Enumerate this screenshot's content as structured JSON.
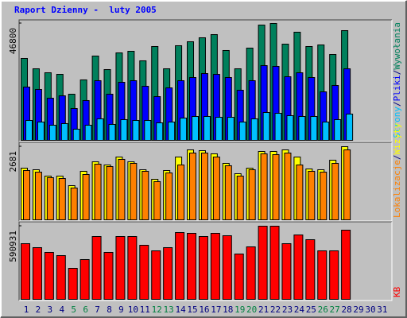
{
  "chart_data": {
    "type": "bar",
    "title": "Raport Dzienny -  luty 2005",
    "categories": [
      "1",
      "2",
      "3",
      "4",
      "5",
      "6",
      "7",
      "8",
      "9",
      "10",
      "11",
      "12",
      "13",
      "14",
      "15",
      "16",
      "17",
      "18",
      "19",
      "20",
      "21",
      "22",
      "23",
      "24",
      "25",
      "26",
      "27",
      "28",
      "29",
      "30",
      "31"
    ],
    "category_colors": [
      "#000080",
      "#000080",
      "#000080",
      "#000080",
      "#008040",
      "#008040",
      "#000080",
      "#000080",
      "#000080",
      "#000080",
      "#000080",
      "#008040",
      "#008040",
      "#000080",
      "#000080",
      "#000080",
      "#000080",
      "#000080",
      "#008040",
      "#008040",
      "#000080",
      "#000080",
      "#000080",
      "#000080",
      "#000080",
      "#008040",
      "#008040",
      "#000080",
      "#000080",
      "#000080",
      "#000080"
    ],
    "legend_separator": "/",
    "panels": [
      {
        "ylim": [
          0,
          46800
        ],
        "yticks": [
          46800
        ],
        "series": [
          {
            "name": "Wywołania",
            "color": "#00805c",
            "values": [
              32790,
              28650,
              27060,
              26420,
              18470,
              24200,
              33750,
              28330,
              35020,
              35660,
              31840,
              37570,
              28650,
              37890,
              39480,
              41070,
              42340,
              35980,
              28650,
              36930,
              46160,
              46800,
              38520,
              43300,
              37570,
              38200,
              34380,
              43930,
              null,
              null,
              null
            ]
          },
          {
            "name": "Pliki",
            "color": "#0000ff",
            "values": [
              21330,
              20380,
              16870,
              17830,
              12730,
              15920,
              23880,
              18470,
              23240,
              23880,
              21650,
              17510,
              21010,
              23880,
              25150,
              26740,
              26420,
              25150,
              20060,
              23880,
              29930,
              29610,
              25470,
              27060,
              25150,
              19420,
              21970,
              28650,
              null,
              null,
              null
            ]
          },
          {
            "name": "Strony",
            "color": "#00c0ff",
            "values": [
              7960,
              7320,
              6050,
              6690,
              4460,
              6050,
              8600,
              6370,
              8280,
              7960,
              7960,
              7000,
              7320,
              8910,
              9550,
              9550,
              9230,
              9230,
              7320,
              8600,
              11140,
              10820,
              9870,
              9550,
              9550,
              7320,
              8280,
              10510,
              null,
              null,
              null
            ]
          }
        ]
      },
      {
        "ylim": [
          0,
          2681
        ],
        "yticks": [
          2681
        ],
        "series": [
          {
            "name": "Wizyty",
            "color": "#ffff00",
            "values": [
              1894,
              1836,
              1603,
              1603,
              1253,
              1778,
              2127,
              2011,
              2302,
              2127,
              1836,
              1486,
              1807,
              2302,
              2564,
              2535,
              2419,
              2069,
              1690,
              1894,
              2506,
              2506,
              2564,
              2302,
              1865,
              1836,
              2186,
              2681,
              null,
              null,
              null
            ]
          },
          {
            "name": "Lokalizacje",
            "color": "#ff8000",
            "values": [
              1807,
              1748,
              1545,
              1515,
              1166,
              1661,
              2040,
              1952,
              2215,
              2069,
              1778,
              1399,
              1719,
              2011,
              2448,
              2448,
              2302,
              1982,
              1603,
              1836,
              2419,
              2390,
              2448,
              2011,
              1778,
              1748,
              2069,
              2564,
              null,
              null,
              null
            ]
          }
        ]
      },
      {
        "ylim": [
          0,
          590931
        ],
        "yticks": [
          590931
        ],
        "series": [
          {
            "name": "KB",
            "color": "#ff0000",
            "values": [
              449620,
              417510,
              378970,
              353280,
              250500,
              321160,
              507430,
              378970,
              507430,
              507430,
              436780,
              391810,
              417510,
              539550,
              533120,
              507430,
              533120,
              513850,
              366120,
              423930,
              590931,
              590931,
              449620,
              520280,
              481740,
              391810,
              391810,
              558820,
              null,
              null,
              null
            ]
          }
        ]
      }
    ]
  }
}
